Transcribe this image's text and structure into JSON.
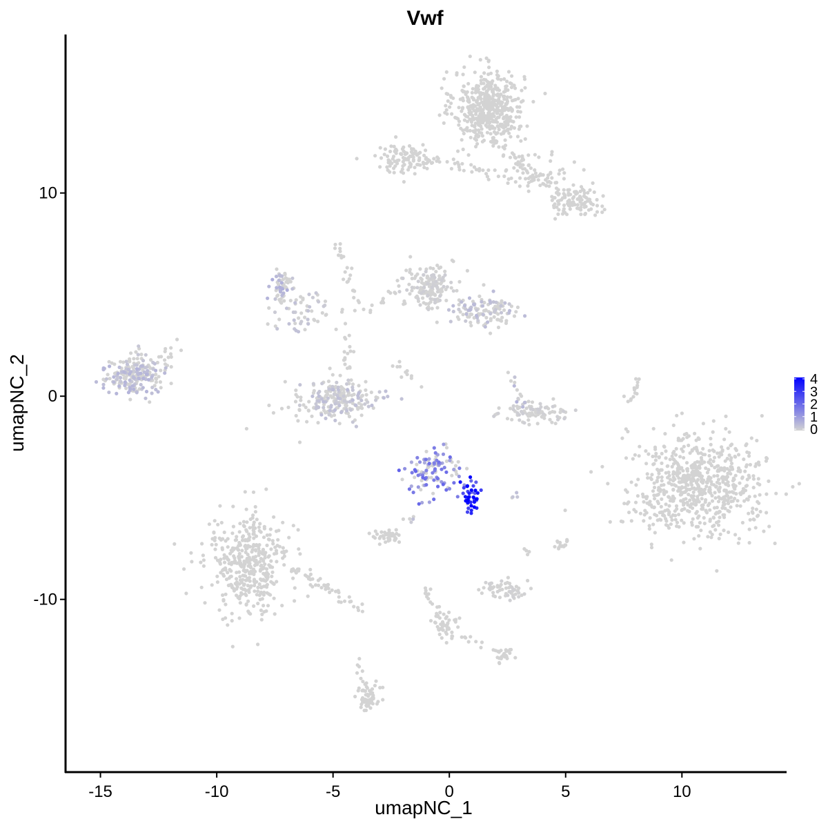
{
  "chart_data": {
    "type": "scatter",
    "title": "Vwf",
    "xlabel": "umapNC_1",
    "ylabel": "umapNC_2",
    "xlim": [
      -16.5,
      14.5
    ],
    "ylim": [
      -18.5,
      17.8
    ],
    "xticks": [
      -15,
      -10,
      -5,
      0,
      5,
      10
    ],
    "yticks": [
      -10,
      0,
      10
    ],
    "xtick_labels": [
      "-15",
      "-10",
      "-5",
      "0",
      "5",
      "10"
    ],
    "ytick_labels": [
      "-10",
      "0",
      "10"
    ],
    "grid": false,
    "legend": {
      "position": "right",
      "type": "colorbar",
      "min": 0,
      "max": 4,
      "ticks": [
        0,
        1,
        2,
        3,
        4
      ],
      "tick_labels": [
        "0",
        "1",
        "2",
        "3",
        "4"
      ],
      "low_color": "#d3d3d3",
      "high_color": "#0000ff"
    },
    "clusters": [
      {
        "cx": 1.7,
        "cy": 14.2,
        "sx": 0.75,
        "sy": 0.9,
        "n": 500,
        "expr": 0
      },
      {
        "cx": -1.8,
        "cy": 11.7,
        "sx": 0.75,
        "sy": 0.35,
        "n": 110,
        "expr": 0
      },
      {
        "cx": 5.4,
        "cy": 9.6,
        "sx": 0.55,
        "sy": 0.35,
        "n": 110,
        "expr": 0
      },
      {
        "cx": 3.8,
        "cy": 11.0,
        "sx": 0.7,
        "sy": 0.5,
        "n": 70,
        "expr": 0
      },
      {
        "cx": -13.5,
        "cy": 1.0,
        "sx": 0.6,
        "sy": 0.5,
        "n": 230,
        "expr": 0.5
      },
      {
        "cx": -7.2,
        "cy": 5.5,
        "sx": 0.25,
        "sy": 0.4,
        "n": 60,
        "expr": 0.6
      },
      {
        "cx": -6.2,
        "cy": 4.2,
        "sx": 0.8,
        "sy": 0.5,
        "n": 60,
        "expr": 0.3
      },
      {
        "cx": -4.8,
        "cy": -0.2,
        "sx": 1.0,
        "sy": 0.5,
        "n": 230,
        "expr": 0.35
      },
      {
        "cx": -0.8,
        "cy": 5.4,
        "sx": 0.5,
        "sy": 0.55,
        "n": 160,
        "expr": 0.1
      },
      {
        "cx": 1.6,
        "cy": 4.2,
        "sx": 0.7,
        "sy": 0.45,
        "n": 120,
        "expr": 0.4
      },
      {
        "cx": 3.6,
        "cy": -0.8,
        "sx": 0.7,
        "sy": 0.25,
        "n": 90,
        "expr": 0.1
      },
      {
        "cx": 10.6,
        "cy": -4.4,
        "sx": 1.45,
        "sy": 1.25,
        "n": 700,
        "expr": 0
      },
      {
        "cx": -8.6,
        "cy": -8.2,
        "sx": 0.9,
        "sy": 1.2,
        "n": 420,
        "expr": 0
      },
      {
        "cx": -0.6,
        "cy": -3.7,
        "sx": 0.55,
        "sy": 0.55,
        "n": 110,
        "expr": 1.8
      },
      {
        "cx": 0.9,
        "cy": -4.8,
        "sx": 0.2,
        "sy": 0.45,
        "n": 45,
        "expr": 3.8
      },
      {
        "cx": -2.6,
        "cy": -6.9,
        "sx": 0.3,
        "sy": 0.18,
        "n": 40,
        "expr": 0
      },
      {
        "cx": 2.4,
        "cy": -9.5,
        "sx": 0.55,
        "sy": 0.22,
        "n": 60,
        "expr": 0.05
      },
      {
        "cx": -3.5,
        "cy": -14.8,
        "sx": 0.25,
        "sy": 0.5,
        "n": 60,
        "expr": 0
      },
      {
        "cx": 2.3,
        "cy": -12.7,
        "sx": 0.2,
        "sy": 0.18,
        "n": 25,
        "expr": 0
      },
      {
        "cx": -0.1,
        "cy": -11.4,
        "sx": 0.25,
        "sy": 0.4,
        "n": 35,
        "expr": 0
      },
      {
        "cx": 4.9,
        "cy": -7.3,
        "sx": 0.2,
        "sy": 0.2,
        "n": 15,
        "expr": 0
      }
    ],
    "trails": [
      {
        "x0": -1.5,
        "y0": 11.8,
        "x1": 2.2,
        "y1": 10.9,
        "n": 30,
        "expr": 0
      },
      {
        "x0": 1.8,
        "y0": 12.8,
        "x1": 4.0,
        "y1": 10.3,
        "n": 25,
        "expr": 0
      },
      {
        "x0": -4.9,
        "y0": 7.5,
        "x1": -3.8,
        "y1": 4.2,
        "n": 25,
        "expr": 0
      },
      {
        "x0": -4.3,
        "y0": 3.2,
        "x1": -4.5,
        "y1": 1.0,
        "n": 15,
        "expr": 0
      },
      {
        "x0": -3.5,
        "y0": 4.0,
        "x1": -1.6,
        "y1": 6.2,
        "n": 15,
        "expr": 0
      },
      {
        "x0": -11.6,
        "y0": 2.8,
        "x1": -12.4,
        "y1": 1.4,
        "n": 10,
        "expr": 0
      },
      {
        "x0": -2.4,
        "y0": 1.7,
        "x1": -1.2,
        "y1": 0.6,
        "n": 10,
        "expr": 0
      },
      {
        "x0": 2.4,
        "y0": 1.2,
        "x1": 3.2,
        "y1": -0.5,
        "n": 12,
        "expr": 0.4
      },
      {
        "x0": 8.2,
        "y0": 0.9,
        "x1": 7.8,
        "y1": -0.3,
        "n": 15,
        "expr": 0
      },
      {
        "x0": -6.6,
        "y0": -8.5,
        "x1": -3.9,
        "y1": -10.4,
        "n": 45,
        "expr": 0
      },
      {
        "x0": -1.0,
        "y0": -9.3,
        "x1": -0.3,
        "y1": -11.8,
        "n": 22,
        "expr": 0
      },
      {
        "x0": -0.3,
        "y0": -11.6,
        "x1": 2.2,
        "y1": -12.6,
        "n": 12,
        "expr": 0
      },
      {
        "x0": -1.6,
        "y0": -6.0,
        "x1": -2.1,
        "y1": -6.7,
        "n": 5,
        "expr": 0.3
      },
      {
        "x0": 2.6,
        "y0": -5.0,
        "x1": 2.9,
        "y1": -5.0,
        "n": 4,
        "expr": 0.3
      },
      {
        "x0": -3.8,
        "y0": -13.8,
        "x1": -3.9,
        "y1": -12.9,
        "n": 4,
        "expr": 0
      },
      {
        "x0": 3.2,
        "y0": -7.5,
        "x1": 3.5,
        "y1": -7.7,
        "n": 4,
        "expr": 0
      }
    ]
  }
}
